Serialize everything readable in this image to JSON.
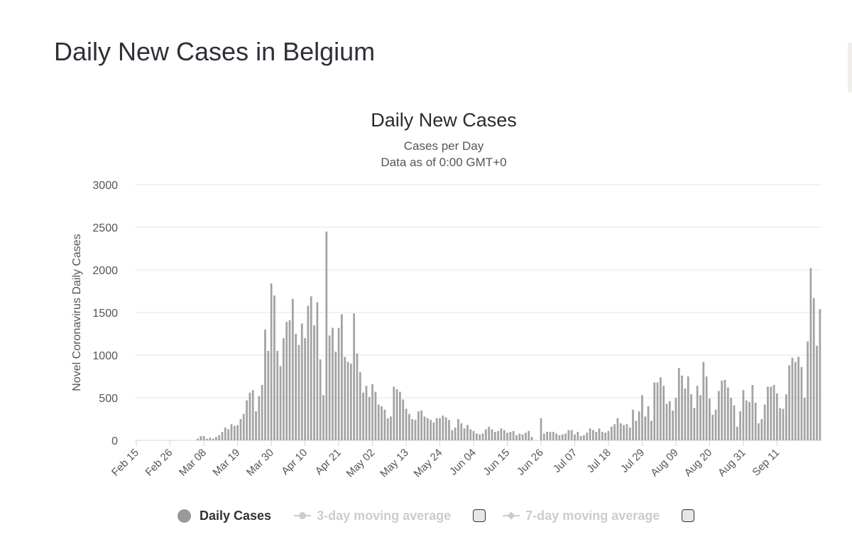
{
  "page": {
    "title": "Daily New Cases in Belgium"
  },
  "chart": {
    "title": "Daily New Cases",
    "subtitle1": "Cases per Day",
    "subtitle2": "Data as of 0:00 GMT+0"
  },
  "legend": {
    "daily": "Daily Cases",
    "avg3": "3-day moving average",
    "avg7": "7-day moving average"
  },
  "colors": {
    "bar": "#a3a3a3",
    "grid": "#e6e6e6",
    "axis": "#ccd6eb"
  },
  "chart_data": {
    "type": "bar",
    "title": "Daily New Cases",
    "subtitle": "Cases per Day — Data as of 0:00 GMT+0",
    "xlabel": "",
    "ylabel": "Novel Coronavirus Daily Cases",
    "ylim": [
      0,
      3000
    ],
    "yticks": [
      0,
      500,
      1000,
      1500,
      2000,
      2500,
      3000
    ],
    "xtick_labels": [
      "Feb 15",
      "Feb 26",
      "Mar 08",
      "Mar 19",
      "Mar 30",
      "Apr 10",
      "Apr 21",
      "May 02",
      "May 13",
      "May 24",
      "Jun 04",
      "Jun 15",
      "Jun 26",
      "Jul 07",
      "Jul 18",
      "Jul 29",
      "Aug 09",
      "Aug 20",
      "Aug 31",
      "Sep 11"
    ],
    "first_date": "Feb 15",
    "series": [
      {
        "name": "Daily Cases",
        "values": [
          0,
          0,
          0,
          0,
          0,
          0,
          0,
          0,
          0,
          0,
          0,
          0,
          0,
          0,
          0,
          0,
          0,
          0,
          0,
          0,
          20,
          50,
          50,
          20,
          30,
          20,
          40,
          60,
          100,
          150,
          130,
          190,
          170,
          180,
          250,
          310,
          470,
          560,
          590,
          340,
          520,
          650,
          1300,
          1050,
          1840,
          1700,
          1050,
          870,
          1200,
          1390,
          1410,
          1660,
          1250,
          1120,
          1370,
          1200,
          1580,
          1690,
          1350,
          1620,
          950,
          530,
          2450,
          1230,
          1320,
          1040,
          1320,
          1480,
          980,
          920,
          900,
          1490,
          1020,
          800,
          560,
          640,
          510,
          660,
          570,
          420,
          400,
          360,
          260,
          280,
          630,
          600,
          570,
          480,
          370,
          310,
          250,
          240,
          340,
          350,
          280,
          260,
          240,
          210,
          260,
          260,
          290,
          270,
          240,
          120,
          150,
          250,
          200,
          140,
          180,
          130,
          110,
          80,
          70,
          80,
          130,
          160,
          130,
          100,
          110,
          140,
          120,
          90,
          100,
          110,
          60,
          80,
          70,
          90,
          110,
          40,
          0,
          0,
          260,
          80,
          100,
          100,
          100,
          80,
          60,
          70,
          80,
          120,
          120,
          70,
          100,
          50,
          60,
          90,
          140,
          120,
          100,
          140,
          100,
          90,
          110,
          160,
          190,
          260,
          200,
          180,
          190,
          150,
          360,
          230,
          340,
          530,
          280,
          400,
          230,
          680,
          680,
          740,
          640,
          430,
          460,
          350,
          500,
          850,
          760,
          610,
          750,
          540,
          380,
          640,
          530,
          920,
          750,
          490,
          300,
          360,
          580,
          700,
          710,
          620,
          500,
          410,
          160,
          340,
          590,
          470,
          450,
          650,
          440,
          200,
          250,
          420,
          630,
          630,
          650,
          550,
          380,
          370,
          540,
          880,
          970,
          920,
          980,
          860,
          500,
          1160,
          2020,
          1670,
          1110,
          1540
        ]
      }
    ]
  }
}
